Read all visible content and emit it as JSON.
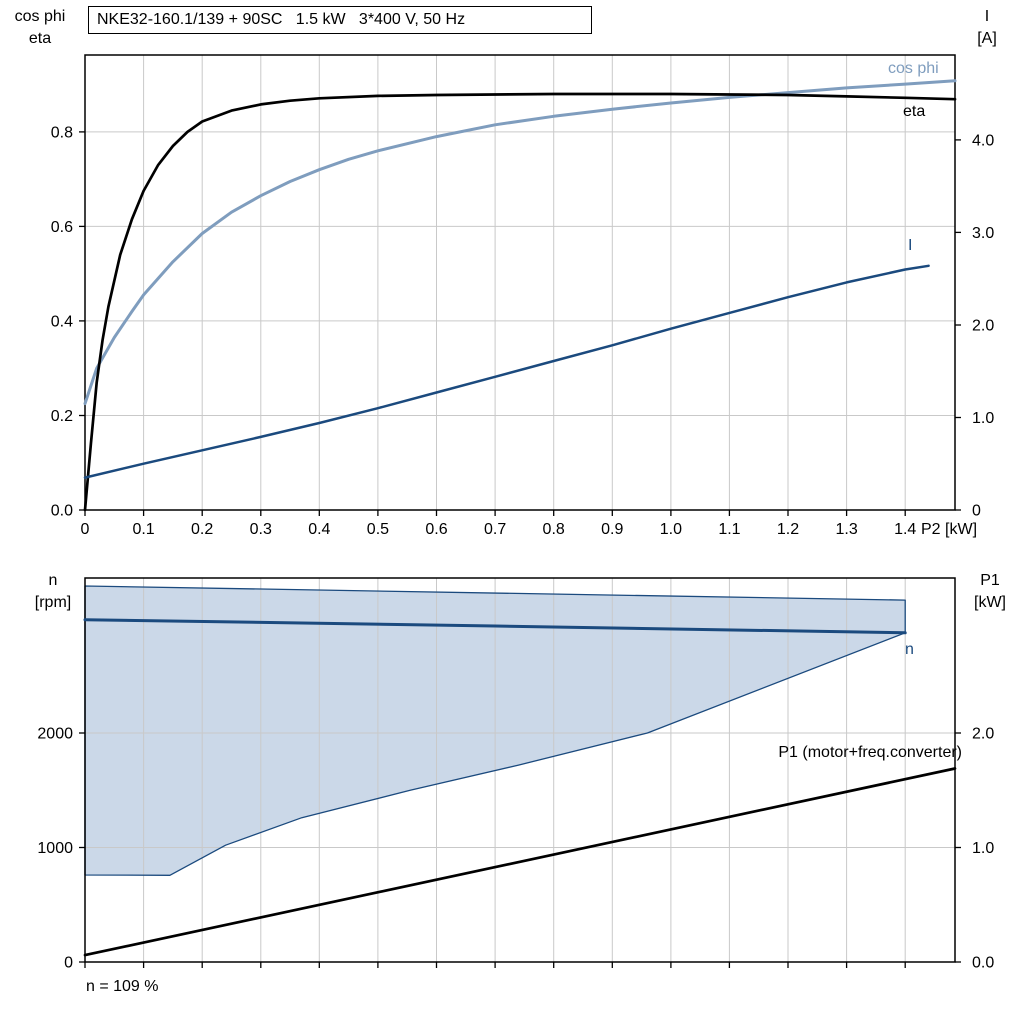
{
  "header": {
    "title": "NKE32-160.1/139 + 90SC   1.5 kW   3*400 V, 50 Hz"
  },
  "footer": {
    "note": "n = 109 %"
  },
  "axes_labels": {
    "top_left_line1": "cos phi",
    "top_left_line2": "eta",
    "top_right_line1": "I",
    "top_right_line2": "[A]",
    "bottom_left_line1": "n",
    "bottom_left_line2": "[rpm]",
    "bottom_right_line1": "P1",
    "bottom_right_line2": "[kW]",
    "x_axis": "P2 [kW]"
  },
  "curve_labels": {
    "cos_phi": "cos phi",
    "eta": "eta",
    "current": "I",
    "speed": "n",
    "p1": "P1 (motor+freq.converter)"
  },
  "colors": {
    "cos_phi": "#7F9DBE",
    "eta": "#000000",
    "current": "#1B4A7E",
    "speed": "#1B4A7E",
    "p1": "#000000",
    "band_fill": "#CBD8E8",
    "band_stroke": "#1B4A7E",
    "grid": "#C9C9C9",
    "axis": "#000000"
  },
  "chart_data": [
    {
      "type": "line",
      "title": "NKE32-160.1/139 + 90SC   1.5 kW   3*400 V, 50 Hz",
      "xlabel": "P2 [kW]",
      "xlim": [
        0,
        1.485
      ],
      "x_ticks": [
        0,
        0.1,
        0.2,
        0.3,
        0.4,
        0.5,
        0.6,
        0.7,
        0.8,
        0.9,
        1.0,
        1.1,
        1.2,
        1.3,
        1.4
      ],
      "x_tick_labels": [
        "0",
        "0.1",
        "0.2",
        "0.3",
        "0.4",
        "0.5",
        "0.6",
        "0.7",
        "0.8",
        "0.9",
        "1.0",
        "1.1",
        "1.2",
        "1.3",
        "1.4"
      ],
      "y_left": {
        "label": "cos phi / eta",
        "lim": [
          0,
          0.9626
        ],
        "ticks": [
          0,
          0.2,
          0.4,
          0.6,
          0.8
        ],
        "tick_labels": [
          "0.0",
          "0.2",
          "0.4",
          "0.6",
          "0.8"
        ]
      },
      "y_right": {
        "label": "I [A]",
        "lim": [
          0,
          4.918
        ],
        "ticks": [
          0,
          1,
          2,
          3,
          4
        ],
        "tick_labels": [
          "0",
          "1.0",
          "2.0",
          "3.0",
          "4.0"
        ]
      },
      "grid": true,
      "legend_position": "curve-end-labels",
      "series": [
        {
          "id": "cos_phi",
          "name": "cos phi",
          "axis": "left",
          "color_key": "cos_phi",
          "points": [
            [
              0,
              0.225
            ],
            [
              0.02,
              0.3
            ],
            [
              0.05,
              0.365
            ],
            [
              0.08,
              0.42
            ],
            [
              0.1,
              0.455
            ],
            [
              0.15,
              0.525
            ],
            [
              0.2,
              0.585
            ],
            [
              0.25,
              0.63
            ],
            [
              0.3,
              0.665
            ],
            [
              0.35,
              0.695
            ],
            [
              0.4,
              0.72
            ],
            [
              0.45,
              0.742
            ],
            [
              0.5,
              0.76
            ],
            [
              0.6,
              0.79
            ],
            [
              0.7,
              0.815
            ],
            [
              0.8,
              0.833
            ],
            [
              0.9,
              0.848
            ],
            [
              1.0,
              0.861
            ],
            [
              1.1,
              0.873
            ],
            [
              1.2,
              0.883
            ],
            [
              1.3,
              0.893
            ],
            [
              1.4,
              0.901
            ],
            [
              1.485,
              0.908
            ]
          ]
        },
        {
          "id": "eta",
          "name": "eta",
          "axis": "left",
          "color_key": "eta",
          "points": [
            [
              0,
              0
            ],
            [
              0.01,
              0.14
            ],
            [
              0.02,
              0.27
            ],
            [
              0.03,
              0.36
            ],
            [
              0.04,
              0.43
            ],
            [
              0.06,
              0.54
            ],
            [
              0.08,
              0.615
            ],
            [
              0.1,
              0.675
            ],
            [
              0.125,
              0.73
            ],
            [
              0.15,
              0.77
            ],
            [
              0.175,
              0.8
            ],
            [
              0.2,
              0.822
            ],
            [
              0.25,
              0.845
            ],
            [
              0.3,
              0.858
            ],
            [
              0.35,
              0.866
            ],
            [
              0.4,
              0.871
            ],
            [
              0.5,
              0.876
            ],
            [
              0.6,
              0.878
            ],
            [
              0.7,
              0.879
            ],
            [
              0.8,
              0.88
            ],
            [
              0.9,
              0.88
            ],
            [
              1.0,
              0.88
            ],
            [
              1.1,
              0.879
            ],
            [
              1.2,
              0.878
            ],
            [
              1.3,
              0.875
            ],
            [
              1.4,
              0.872
            ],
            [
              1.485,
              0.869
            ]
          ]
        },
        {
          "id": "current",
          "name": "I",
          "axis": "right",
          "color_key": "current",
          "points": [
            [
              0,
              0.35
            ],
            [
              0.1,
              0.5
            ],
            [
              0.2,
              0.645
            ],
            [
              0.3,
              0.79
            ],
            [
              0.4,
              0.94
            ],
            [
              0.5,
              1.1
            ],
            [
              0.6,
              1.27
            ],
            [
              0.7,
              1.44
            ],
            [
              0.8,
              1.61
            ],
            [
              0.9,
              1.78
            ],
            [
              1.0,
              1.96
            ],
            [
              1.1,
              2.13
            ],
            [
              1.2,
              2.3
            ],
            [
              1.3,
              2.46
            ],
            [
              1.4,
              2.6
            ],
            [
              1.44,
              2.64
            ]
          ]
        }
      ]
    },
    {
      "type": "line",
      "xlabel": "",
      "xlim": [
        0,
        1.485
      ],
      "x_ticks": [
        0,
        0.1,
        0.2,
        0.3,
        0.4,
        0.5,
        0.6,
        0.7,
        0.8,
        0.9,
        1.0,
        1.1,
        1.2,
        1.3,
        1.4
      ],
      "y_left": {
        "label": "n [rpm]",
        "lim": [
          0,
          3354
        ],
        "ticks": [
          0,
          1000,
          2000
        ],
        "tick_labels": [
          "0",
          "1000",
          "2000"
        ]
      },
      "y_right": {
        "label": "P1 [kW]",
        "lim": [
          0,
          3.354
        ],
        "ticks": [
          0,
          1,
          2
        ],
        "tick_labels": [
          "0.0",
          "1.0",
          "2.0"
        ]
      },
      "grid": true,
      "band": {
        "name": "speed control range",
        "upper": [
          [
            0,
            3284
          ],
          [
            1.4,
            3161
          ]
        ],
        "lower": [
          [
            0,
            760
          ],
          [
            0.145,
            757
          ],
          [
            0.24,
            1020
          ],
          [
            0.37,
            1260
          ],
          [
            0.555,
            1500
          ],
          [
            0.74,
            1720
          ],
          [
            0.96,
            2000
          ],
          [
            1.4,
            2875
          ]
        ]
      },
      "series": [
        {
          "id": "speed",
          "name": "n",
          "axis": "left",
          "color_key": "speed",
          "points": [
            [
              0,
              2990
            ],
            [
              0.7,
              2935
            ],
            [
              1.4,
              2875
            ]
          ]
        },
        {
          "id": "p1",
          "name": "P1 (motor+freq.converter)",
          "axis": "right",
          "color_key": "p1",
          "points": [
            [
              0,
              0.06
            ],
            [
              1.485,
              1.69
            ]
          ]
        }
      ],
      "annotation": "n = 109 %"
    }
  ]
}
